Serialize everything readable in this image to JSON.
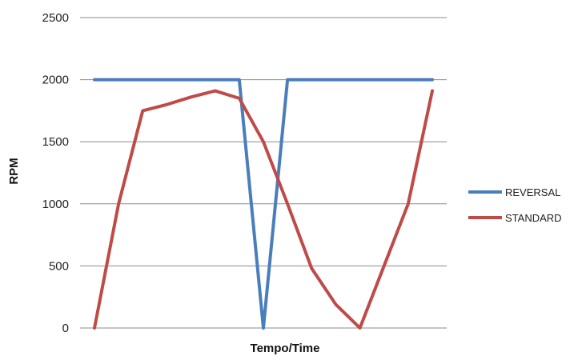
{
  "chart_data": {
    "type": "line",
    "title": "",
    "xlabel": "Tempo/Time",
    "ylabel": "RPM",
    "ylim": [
      0,
      2500
    ],
    "yticks": [
      0,
      500,
      1000,
      1500,
      2000,
      2500
    ],
    "xlim": [
      0,
      14
    ],
    "grid": true,
    "legend_position": "right",
    "series": [
      {
        "name": "REVERSAL",
        "color": "#4a7ebb",
        "points": [
          {
            "x": 0,
            "y": 2000
          },
          {
            "x": 6,
            "y": 2000
          },
          {
            "x": 7,
            "y": 0
          },
          {
            "x": 8,
            "y": 2000
          },
          {
            "x": 14,
            "y": 2000
          }
        ]
      },
      {
        "name": "STANDARD",
        "color": "#be4b48",
        "points": [
          {
            "x": 0,
            "y": 0
          },
          {
            "x": 1,
            "y": 1000
          },
          {
            "x": 2,
            "y": 1750
          },
          {
            "x": 3,
            "y": 1800
          },
          {
            "x": 4,
            "y": 1860
          },
          {
            "x": 5,
            "y": 1910
          },
          {
            "x": 6,
            "y": 1850
          },
          {
            "x": 7,
            "y": 1500
          },
          {
            "x": 8,
            "y": 1000
          },
          {
            "x": 9,
            "y": 480
          },
          {
            "x": 10,
            "y": 190
          },
          {
            "x": 11,
            "y": 0
          },
          {
            "x": 12,
            "y": 500
          },
          {
            "x": 13,
            "y": 1000
          },
          {
            "x": 14,
            "y": 1910
          }
        ]
      }
    ]
  }
}
